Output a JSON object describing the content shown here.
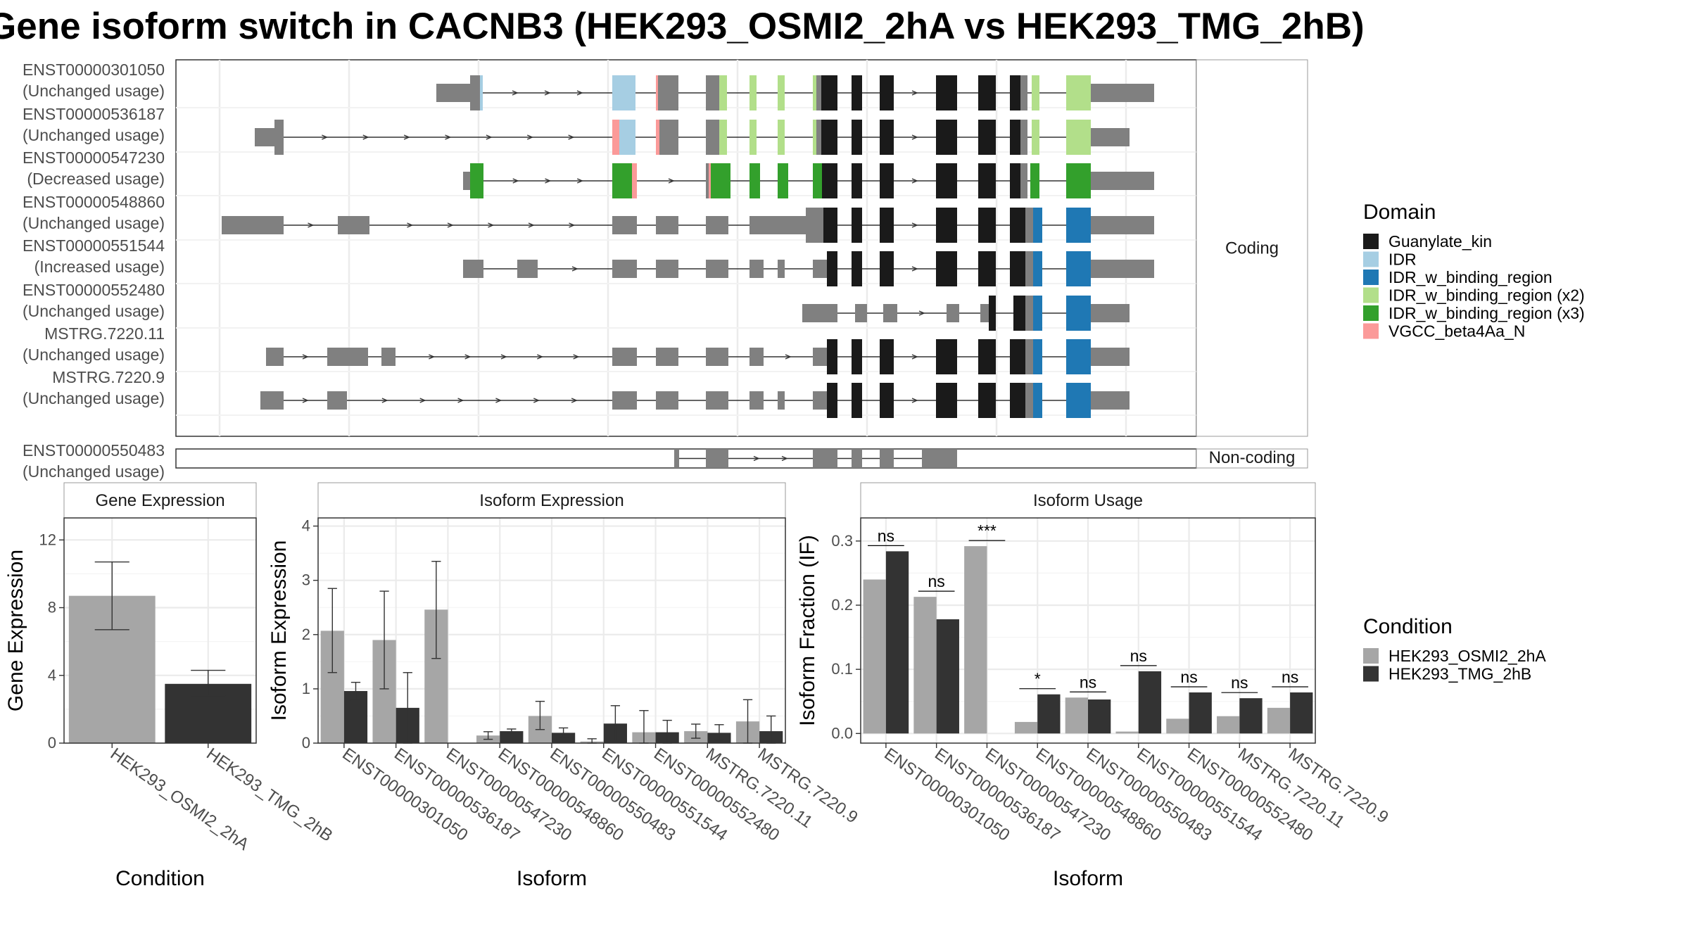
{
  "title": "Gene isoform switch in CACNB3 (HEK293_OSMI2_2hA vs HEK293_TMG_2hB)",
  "structure": {
    "coding_strip": "Coding",
    "noncoding_strip": "Non-coding",
    "transcripts": [
      {
        "id": "ENST00000301050",
        "usage": "(Unchanged usage)",
        "coding": true
      },
      {
        "id": "ENST00000536187",
        "usage": "(Unchanged usage)",
        "coding": true
      },
      {
        "id": "ENST00000547230",
        "usage": "(Decreased usage)",
        "coding": true
      },
      {
        "id": "ENST00000548860",
        "usage": "(Unchanged usage)",
        "coding": true
      },
      {
        "id": "ENST00000551544",
        "usage": "(Increased usage)",
        "coding": true
      },
      {
        "id": "ENST00000552480",
        "usage": "(Unchanged usage)",
        "coding": true
      },
      {
        "id": "MSTRG.7220.11",
        "usage": "(Unchanged usage)",
        "coding": true
      },
      {
        "id": "MSTRG.7220.9",
        "usage": "(Unchanged usage)",
        "coding": true
      },
      {
        "id": "ENST00000550483",
        "usage": "(Unchanged usage)",
        "coding": false
      }
    ]
  },
  "legend_domain": {
    "title": "Domain",
    "items": [
      {
        "label": "Guanylate_kin",
        "color": "#1a1a1a"
      },
      {
        "label": "IDR",
        "color": "#a6cee3"
      },
      {
        "label": "IDR_w_binding_region",
        "color": "#1f78b4"
      },
      {
        "label": "IDR_w_binding_region (x2)",
        "color": "#b2df8a"
      },
      {
        "label": "IDR_w_binding_region (x3)",
        "color": "#33a02c"
      },
      {
        "label": "VGCC_beta4Aa_N",
        "color": "#fb9a99"
      }
    ]
  },
  "legend_condition": {
    "title": "Condition",
    "items": [
      {
        "label": "HEK293_OSMI2_2hA",
        "color": "#a6a6a6"
      },
      {
        "label": "HEK293_TMG_2hB",
        "color": "#333333"
      }
    ]
  },
  "chart_data": [
    {
      "type": "bar",
      "title": "Gene Expression",
      "xlabel": "Condition",
      "ylabel": "Gene Expression",
      "ylim": [
        0,
        13.3
      ],
      "yticks": [
        0,
        4,
        8,
        12
      ],
      "categories": [
        "HEK293_OSMI2_2hA",
        "HEK293_TMG_2hB"
      ],
      "values": [
        8.7,
        3.5
      ],
      "err_low": [
        6.7,
        2.8
      ],
      "err_high": [
        10.7,
        4.3
      ],
      "colors": [
        "#a6a6a6",
        "#333333"
      ]
    },
    {
      "type": "bar",
      "title": "Isoform Expression",
      "xlabel": "Isoform",
      "ylabel": "Isoform Expression",
      "ylim": [
        0,
        4.15
      ],
      "yticks": [
        0,
        1,
        2,
        3,
        4
      ],
      "categories": [
        "ENST00000301050",
        "ENST00000536187",
        "ENST00000547230",
        "ENST00000548860",
        "ENST00000550483",
        "ENST00000551544",
        "ENST00000552480",
        "MSTRG.7220.11",
        "MSTRG.7220.9"
      ],
      "series": [
        {
          "name": "HEK293_OSMI2_2hA",
          "color": "#a6a6a6",
          "values": [
            2.07,
            1.9,
            2.46,
            0.14,
            0.5,
            0.03,
            0.2,
            0.22,
            0.4
          ],
          "err_low": [
            1.3,
            1.0,
            1.56,
            0.07,
            0.25,
            0.0,
            0.0,
            0.09,
            0.0
          ],
          "err_high": [
            2.85,
            2.8,
            3.35,
            0.21,
            0.77,
            0.08,
            0.6,
            0.35,
            0.8
          ]
        },
        {
          "name": "HEK293_TMG_2hB",
          "color": "#333333",
          "values": [
            0.96,
            0.65,
            0.0,
            0.22,
            0.19,
            0.36,
            0.2,
            0.19,
            0.22
          ],
          "err_low": [
            0.79,
            0.0,
            0.0,
            0.18,
            0.1,
            0.05,
            0.0,
            0.06,
            0.0
          ],
          "err_high": [
            1.12,
            1.3,
            0.0,
            0.26,
            0.28,
            0.69,
            0.42,
            0.34,
            0.5
          ]
        }
      ]
    },
    {
      "type": "bar",
      "title": "Isoform Usage",
      "xlabel": "Isoform",
      "ylabel": "Isoform Fraction (IF)",
      "ylim": [
        -0.015,
        0.336
      ],
      "yticks": [
        0.0,
        0.1,
        0.2,
        0.3
      ],
      "ytick_labels": [
        "0.0",
        "0.1",
        "0.2",
        "0.3"
      ],
      "categories": [
        "ENST00000301050",
        "ENST00000536187",
        "ENST00000547230",
        "ENST00000548860",
        "ENST00000550483",
        "ENST00000551544",
        "ENST00000552480",
        "MSTRG.7220.11",
        "MSTRG.7220.9"
      ],
      "series": [
        {
          "name": "HEK293_OSMI2_2hA",
          "color": "#a6a6a6",
          "values": [
            0.24,
            0.213,
            0.292,
            0.018,
            0.056,
            0.003,
            0.023,
            0.027,
            0.04
          ]
        },
        {
          "name": "HEK293_TMG_2hB",
          "color": "#333333",
          "values": [
            0.284,
            0.178,
            0.0,
            0.061,
            0.053,
            0.097,
            0.064,
            0.055,
            0.064
          ]
        }
      ],
      "significance": [
        "ns",
        "ns",
        "***",
        "*",
        "ns",
        "ns",
        "ns",
        "ns",
        "ns"
      ]
    }
  ]
}
